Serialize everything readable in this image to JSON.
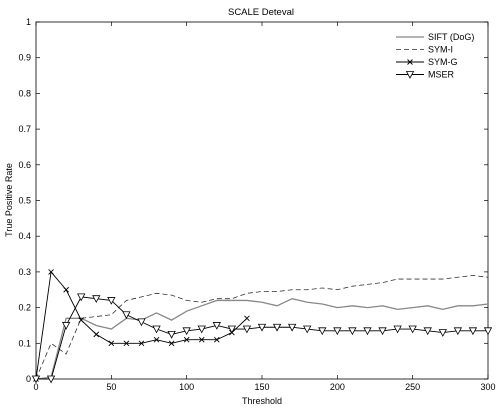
{
  "chart_data": {
    "type": "line",
    "title": "SCALE Deteval",
    "xlabel": "Threshold",
    "ylabel": "True Positive Rate",
    "xlim": [
      0,
      300
    ],
    "ylim": [
      0,
      1
    ],
    "xticks": [
      0,
      50,
      100,
      150,
      200,
      250,
      300
    ],
    "yticks": [
      0,
      0.1,
      0.2,
      0.3,
      0.4,
      0.5,
      0.6,
      0.7,
      0.8,
      0.9,
      1
    ],
    "grid": false,
    "legend": "top-right",
    "series": [
      {
        "name": "SIFT (DoG)",
        "style": "solid",
        "color": "#888888",
        "marker": "none",
        "x": [
          0,
          10,
          20,
          30,
          40,
          50,
          60,
          70,
          80,
          90,
          100,
          110,
          120,
          130,
          140,
          150,
          160,
          170,
          180,
          190,
          200,
          210,
          220,
          230,
          240,
          250,
          260,
          270,
          280,
          290,
          300
        ],
        "y": [
          0,
          0.005,
          0.17,
          0.17,
          0.15,
          0.14,
          0.17,
          0.165,
          0.185,
          0.165,
          0.19,
          0.205,
          0.22,
          0.22,
          0.22,
          0.215,
          0.205,
          0.225,
          0.215,
          0.21,
          0.2,
          0.205,
          0.2,
          0.205,
          0.195,
          0.2,
          0.205,
          0.195,
          0.205,
          0.205,
          0.21
        ]
      },
      {
        "name": "SYM-I",
        "style": "dashed",
        "color": "#333333",
        "marker": "none",
        "x": [
          0,
          10,
          20,
          30,
          40,
          50,
          60,
          70,
          80,
          90,
          100,
          110,
          120,
          130,
          140,
          150,
          160,
          170,
          180,
          190,
          200,
          210,
          220,
          230,
          240,
          250,
          260,
          270,
          280,
          290,
          300
        ],
        "y": [
          0,
          0.1,
          0.07,
          0.17,
          0.175,
          0.18,
          0.22,
          0.23,
          0.24,
          0.235,
          0.22,
          0.215,
          0.225,
          0.225,
          0.24,
          0.245,
          0.245,
          0.25,
          0.25,
          0.255,
          0.25,
          0.26,
          0.265,
          0.27,
          0.28,
          0.28,
          0.28,
          0.28,
          0.285,
          0.29,
          0.285
        ]
      },
      {
        "name": "SYM-G",
        "style": "solid",
        "color": "#000000",
        "marker": "x",
        "x": [
          0,
          10,
          20,
          30,
          40,
          50,
          60,
          70,
          80,
          90,
          100,
          110,
          120,
          130,
          140
        ],
        "y": [
          0,
          0.3,
          0.25,
          0.165,
          0.125,
          0.1,
          0.1,
          0.1,
          0.11,
          0.1,
          0.11,
          0.11,
          0.11,
          0.13,
          0.17
        ]
      },
      {
        "name": "MSER",
        "style": "solid",
        "color": "#000000",
        "marker": "triangle-down",
        "x": [
          0,
          10,
          20,
          30,
          40,
          50,
          60,
          70,
          80,
          90,
          100,
          110,
          120,
          130,
          140,
          150,
          160,
          170,
          180,
          190,
          200,
          210,
          220,
          230,
          240,
          250,
          260,
          270,
          280,
          290,
          300
        ],
        "y": [
          0,
          0,
          0.15,
          0.23,
          0.225,
          0.22,
          0.18,
          0.16,
          0.14,
          0.125,
          0.135,
          0.14,
          0.15,
          0.14,
          0.14,
          0.145,
          0.145,
          0.145,
          0.14,
          0.135,
          0.135,
          0.135,
          0.135,
          0.135,
          0.14,
          0.14,
          0.135,
          0.13,
          0.135,
          0.135,
          0.135
        ]
      }
    ]
  }
}
